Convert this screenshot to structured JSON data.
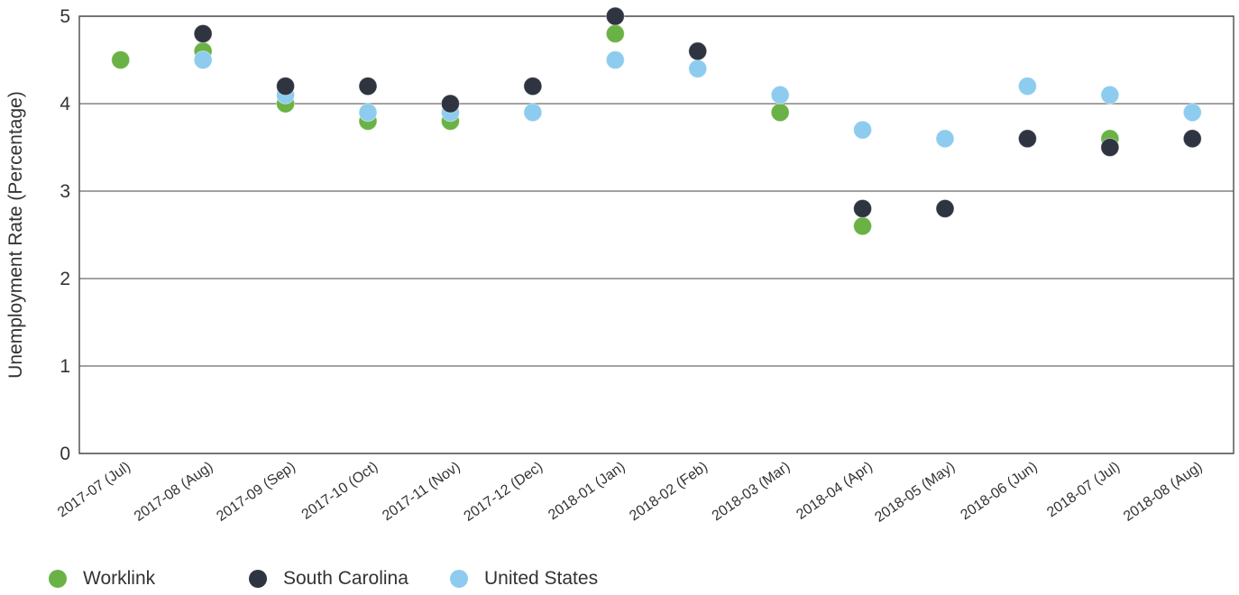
{
  "chart_data": {
    "type": "scatter",
    "title": "",
    "xlabel": "",
    "ylabel": "Unemployment Rate (Percentage)",
    "ylim": [
      0,
      5
    ],
    "yticks": [
      0,
      1,
      2,
      3,
      4,
      5
    ],
    "grid": true,
    "legend_position": "bottom-left",
    "categories": [
      "2017-07 (Jul)",
      "2017-08 (Aug)",
      "2017-09 (Sep)",
      "2017-10 (Oct)",
      "2017-11 (Nov)",
      "2017-12 (Dec)",
      "2018-01 (Jan)",
      "2018-02 (Feb)",
      "2018-03 (Mar)",
      "2018-04 (Apr)",
      "2018-05 (May)",
      "2018-06 (Jun)",
      "2018-07 (Jul)",
      "2018-08 (Aug)"
    ],
    "series": [
      {
        "name": "Worklink",
        "color": "#6ab245",
        "values": [
          4.5,
          4.6,
          4.0,
          3.8,
          3.8,
          null,
          4.8,
          null,
          3.9,
          2.6,
          null,
          null,
          3.6,
          null
        ]
      },
      {
        "name": "South Carolina",
        "color": "#2e3440",
        "values": [
          null,
          4.8,
          4.2,
          4.2,
          4.0,
          4.2,
          5.0,
          4.6,
          null,
          2.8,
          2.8,
          3.6,
          3.5,
          3.6
        ]
      },
      {
        "name": "United States",
        "color": "#8dccee",
        "values": [
          null,
          4.5,
          4.1,
          3.9,
          3.9,
          3.9,
          4.5,
          4.4,
          4.1,
          3.7,
          3.6,
          4.2,
          4.1,
          3.9
        ]
      }
    ]
  }
}
